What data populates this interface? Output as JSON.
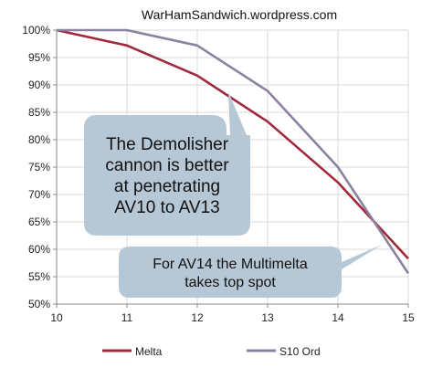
{
  "chart_data": {
    "type": "line",
    "title": "WarHamSandwich.wordpress.com",
    "xlabel": "",
    "ylabel": "",
    "x": [
      10,
      11,
      12,
      13,
      14,
      15
    ],
    "xlim": [
      10,
      15
    ],
    "ylim": [
      50,
      100
    ],
    "y_ticks": [
      "50%",
      "55%",
      "60%",
      "65%",
      "70%",
      "75%",
      "80%",
      "85%",
      "90%",
      "95%",
      "100%"
    ],
    "x_ticks": [
      "10",
      "11",
      "12",
      "13",
      "14",
      "15"
    ],
    "grid": true,
    "legend_position": "bottom",
    "series": [
      {
        "name": "Melta",
        "color": "#a0283c",
        "values": [
          100,
          97.2,
          91.7,
          83.3,
          72.2,
          58.3
        ]
      },
      {
        "name": "S10 Ord",
        "color": "#8c82a0",
        "values": [
          100,
          100,
          97.2,
          88.9,
          75.0,
          55.6
        ]
      }
    ],
    "annotations": [
      {
        "lines": [
          "The Demolisher",
          "cannon is better",
          "at penetrating",
          "AV10 to AV13"
        ]
      },
      {
        "lines": [
          "For AV14 the Multimelta",
          "takes top spot"
        ]
      }
    ]
  }
}
